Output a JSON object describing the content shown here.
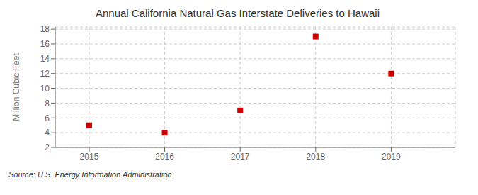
{
  "chart_data": {
    "type": "scatter",
    "title": "Annual California Natural Gas Interstate Deliveries to Hawaii",
    "ylabel": "Million Cubic Feet",
    "source": "Source: U.S. Energy Information Administration",
    "x": [
      2015,
      2016,
      2017,
      2018,
      2019
    ],
    "values": [
      5,
      4,
      7,
      17,
      12
    ],
    "xlim": [
      2014.55,
      2019.85
    ],
    "ylim": [
      2,
      18.3
    ],
    "xticks": [
      2015,
      2016,
      2017,
      2018,
      2019
    ],
    "yticks": [
      2,
      4,
      6,
      8,
      10,
      12,
      14,
      16,
      18
    ],
    "color": "#cc0000",
    "marker": "square",
    "grid": true
  }
}
